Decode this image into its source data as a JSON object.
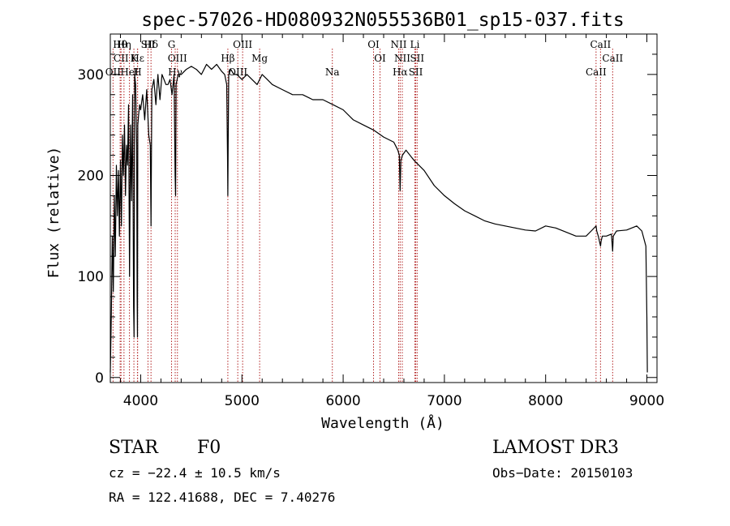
{
  "chart_data": {
    "type": "line",
    "title": "spec-57026-HD080932N055536B01_sp15-037.fits",
    "xlabel": "Wavelength (Å)",
    "ylabel": "Flux (relative)",
    "xlim": [
      3700,
      9100
    ],
    "ylim": [
      -5,
      340
    ],
    "xticks": [
      4000,
      5000,
      6000,
      7000,
      8000,
      9000
    ],
    "yticks": [
      0,
      100,
      200,
      300
    ],
    "series": [
      {
        "name": "flux",
        "x": [
          3700,
          3710,
          3720,
          3730,
          3740,
          3750,
          3760,
          3770,
          3780,
          3790,
          3800,
          3810,
          3820,
          3830,
          3840,
          3850,
          3860,
          3870,
          3880,
          3890,
          3900,
          3910,
          3920,
          3930,
          3935,
          3940,
          3950,
          3960,
          3965,
          3968,
          3972,
          3980,
          3990,
          4000,
          4020,
          4040,
          4060,
          4080,
          4095,
          4102,
          4110,
          4130,
          4150,
          4170,
          4190,
          4210,
          4230,
          4250,
          4270,
          4290,
          4310,
          4330,
          4340,
          4345,
          4350,
          4370,
          4400,
          4450,
          4500,
          4550,
          4600,
          4650,
          4700,
          4750,
          4800,
          4830,
          4850,
          4858,
          4861,
          4864,
          4870,
          4890,
          4920,
          4950,
          5000,
          5050,
          5100,
          5150,
          5200,
          5250,
          5300,
          5400,
          5500,
          5600,
          5700,
          5800,
          5900,
          6000,
          6100,
          6200,
          6300,
          6400,
          6500,
          6540,
          6555,
          6563,
          6570,
          6585,
          6620,
          6700,
          6800,
          6900,
          7000,
          7100,
          7200,
          7300,
          7400,
          7500,
          7600,
          7700,
          7800,
          7900,
          8000,
          8100,
          8200,
          8300,
          8400,
          8450,
          8498,
          8505,
          8520,
          8542,
          8548,
          8560,
          8600,
          8650,
          8662,
          8668,
          8700,
          8800,
          8900,
          8950,
          8990,
          9000,
          9005
        ],
        "values": [
          5,
          60,
          140,
          85,
          180,
          120,
          210,
          160,
          205,
          140,
          215,
          150,
          240,
          200,
          250,
          180,
          230,
          210,
          270,
          100,
          250,
          175,
          280,
          70,
          40,
          300,
          290,
          230,
          80,
          40,
          250,
          260,
          270,
          265,
          280,
          255,
          285,
          240,
          230,
          150,
          285,
          295,
          270,
          300,
          275,
          300,
          295,
          290,
          290,
          295,
          280,
          300,
          200,
          180,
          290,
          300,
          300,
          305,
          308,
          305,
          300,
          310,
          305,
          310,
          303,
          300,
          290,
          220,
          180,
          230,
          300,
          305,
          300,
          300,
          295,
          300,
          295,
          290,
          300,
          295,
          290,
          285,
          280,
          280,
          275,
          275,
          270,
          265,
          255,
          250,
          245,
          238,
          233,
          225,
          220,
          185,
          215,
          220,
          225,
          215,
          205,
          190,
          180,
          172,
          165,
          160,
          155,
          152,
          150,
          148,
          146,
          145,
          150,
          148,
          144,
          140,
          140,
          145,
          150,
          145,
          140,
          130,
          135,
          140,
          140,
          142,
          125,
          140,
          145,
          146,
          150,
          145,
          130,
          60,
          5
        ]
      }
    ],
    "lines": [
      {
        "name": "Hθ",
        "wave": 3797
      },
      {
        "name": "CII",
        "wave": 3806
      },
      {
        "name": "OII",
        "wave": 3727
      },
      {
        "name": "Hη",
        "wave": 3835
      },
      {
        "name": "K",
        "wave": 3933
      },
      {
        "name": "HeI",
        "wave": 3889
      },
      {
        "name": "SII",
        "wave": 4072
      },
      {
        "name": "Hε",
        "wave": 3970
      },
      {
        "name": "H",
        "wave": 3968
      },
      {
        "name": "Hδ",
        "wave": 4102
      },
      {
        "name": "OIII",
        "wave": 4363
      },
      {
        "name": "Hγ",
        "wave": 4341
      },
      {
        "name": "G",
        "wave": 4305
      },
      {
        "name": "Hβ",
        "wave": 4861
      },
      {
        "name": "OIII",
        "wave": 4959
      },
      {
        "name": "OIII",
        "wave": 5007
      },
      {
        "name": "Mg",
        "wave": 5175
      },
      {
        "name": "Na",
        "wave": 5893
      },
      {
        "name": "OI",
        "wave": 6300
      },
      {
        "name": "OI",
        "wave": 6364
      },
      {
        "name": "Hα",
        "wave": 6563
      },
      {
        "name": "NII",
        "wave": 6548
      },
      {
        "name": "NII",
        "wave": 6584
      },
      {
        "name": "SII",
        "wave": 6717
      },
      {
        "name": "Li",
        "wave": 6708
      },
      {
        "name": "SII",
        "wave": 6731
      },
      {
        "name": "CaII",
        "wave": 8498
      },
      {
        "name": "CaII",
        "wave": 8542
      },
      {
        "name": "CaII",
        "wave": 8662
      }
    ],
    "grid": false
  },
  "info": {
    "class": "STAR",
    "subclass": "F0",
    "survey": "LAMOST DR3",
    "cz": "cz = −22.4 ± 10.5 km/s",
    "obsdate": "Obs−Date: 20150103",
    "radec": "RA = 122.41688, DEC =    7.40276"
  }
}
